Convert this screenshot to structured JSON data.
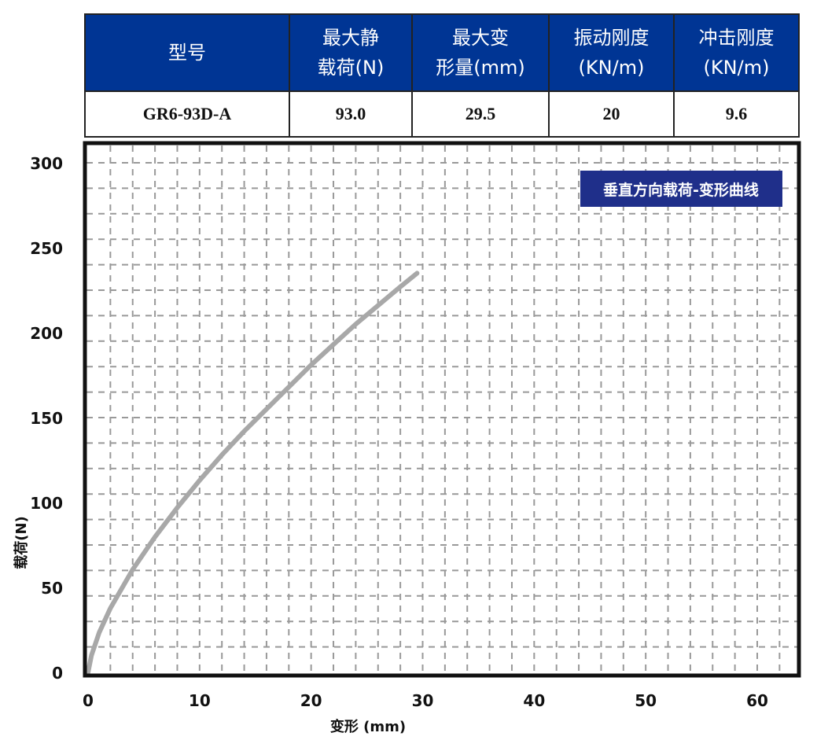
{
  "spec_table": {
    "headers": [
      "型号",
      "最大静\n载荷(N)",
      "最大变\n形量(mm)",
      "振动刚度\n(KN/m)",
      "冲击刚度\n(KN/m)"
    ],
    "row": [
      "GR6-93D-A",
      "93.0",
      "29.5",
      "20",
      "9.6"
    ],
    "header_color": "#003594"
  },
  "chart_data": {
    "type": "line",
    "title": "垂直方向载荷-变形曲线",
    "title_bg_color": "#1f2f8a",
    "xlabel": "变形 (mm)",
    "ylabel": "载荷(N)",
    "xlim": [
      0,
      63.5
    ],
    "ylim": [
      0,
      311
    ],
    "xticks": [
      0,
      10,
      20,
      30,
      40,
      50,
      60
    ],
    "yticks": [
      0,
      50,
      100,
      150,
      200,
      250,
      300
    ],
    "grid": true,
    "grid_style": "dashed",
    "series": [
      {
        "color": "#a8a8a8",
        "x": [
          0,
          0.3,
          1,
          2,
          4,
          6,
          8,
          10,
          12,
          14,
          16,
          18,
          20,
          22,
          24,
          26,
          28,
          29.5
        ],
        "y": [
          0,
          10,
          23.5,
          37.8,
          60.5,
          79.7,
          97,
          113,
          128,
          142,
          155,
          168,
          181,
          193,
          205,
          216,
          227,
          235
        ]
      }
    ]
  }
}
